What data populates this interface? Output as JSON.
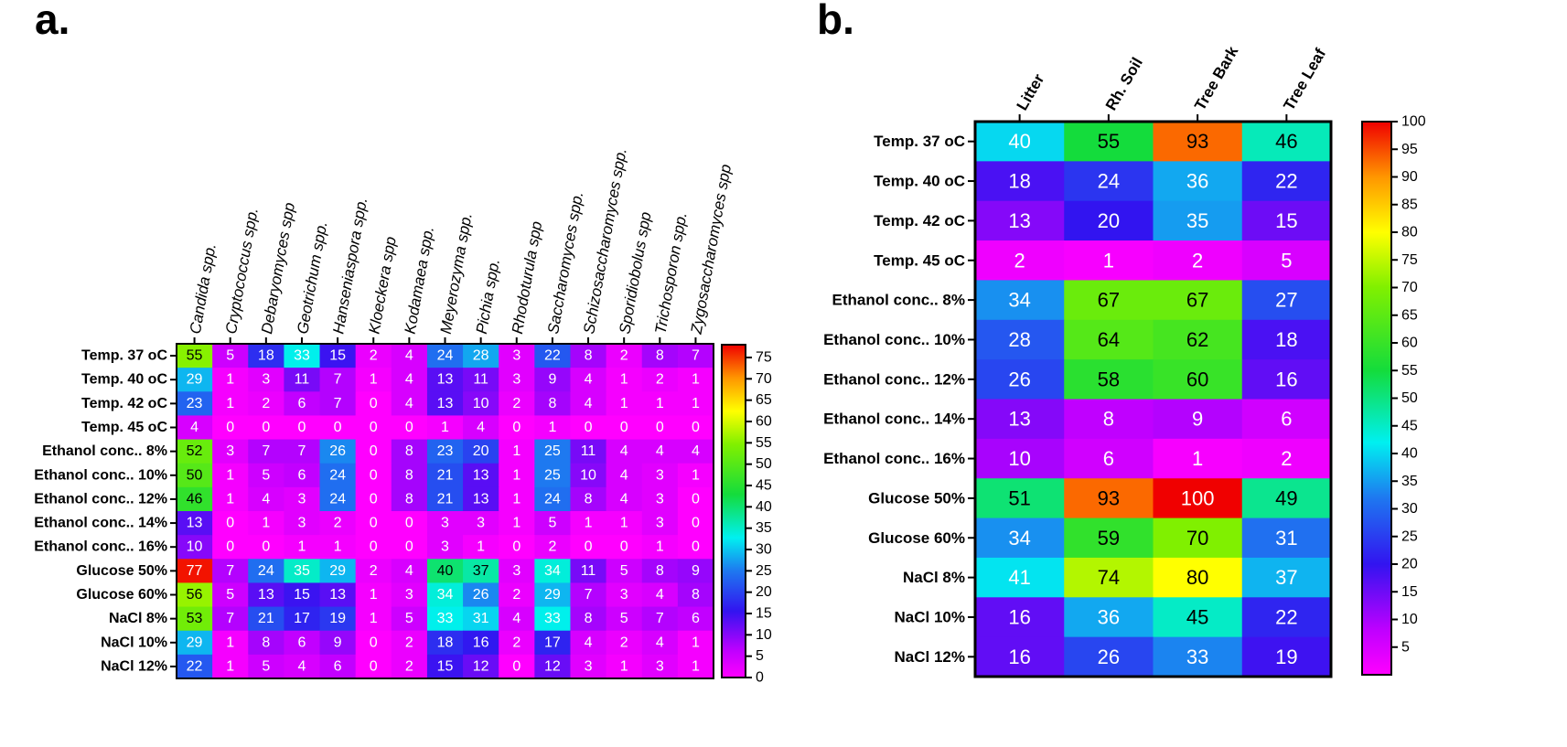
{
  "chart_data": [
    {
      "type": "heatmap",
      "panel_label": "a.",
      "title": "",
      "columns": [
        "Candida spp.",
        "Cryptococcus spp.",
        "Debaryomyces spp",
        "Geotrichum spp.",
        "Hanseniaspora spp.",
        "Kloeckera spp",
        "Kodamaea spp.",
        "Meyerozyma spp.",
        "Pichia spp.",
        "Rhodoturula spp",
        "Saccharomyces spp.",
        "Schizosaccharomyces spp.",
        "Sporidiobolus spp",
        "Trichosporon spp.",
        "Zygosaccharomyces spp"
      ],
      "rows": [
        "Temp. 37 oC",
        "Temp. 40 oC",
        "Temp. 42 oC",
        "Temp. 45 oC",
        "Ethanol conc.. 8%",
        "Ethanol conc.. 10%",
        "Ethanol conc.. 12%",
        "Ethanol conc.. 14%",
        "Ethanol conc.. 16%",
        "Glucose 50%",
        "Glucose 60%",
        "NaCl 8%",
        "NaCl 10%",
        "NaCl 12%"
      ],
      "values": [
        [
          55,
          5,
          18,
          33,
          15,
          2,
          4,
          24,
          28,
          3,
          22,
          8,
          2,
          8,
          7
        ],
        [
          29,
          1,
          3,
          11,
          7,
          1,
          4,
          13,
          11,
          3,
          9,
          4,
          1,
          2,
          1
        ],
        [
          23,
          1,
          2,
          6,
          7,
          0,
          4,
          13,
          10,
          2,
          8,
          4,
          1,
          1,
          1
        ],
        [
          4,
          0,
          0,
          0,
          0,
          0,
          0,
          1,
          4,
          0,
          1,
          0,
          0,
          0,
          0
        ],
        [
          52,
          3,
          7,
          7,
          26,
          0,
          8,
          23,
          20,
          1,
          25,
          11,
          4,
          4,
          4
        ],
        [
          50,
          1,
          5,
          6,
          24,
          0,
          8,
          21,
          13,
          1,
          25,
          10,
          4,
          3,
          1
        ],
        [
          46,
          1,
          4,
          3,
          24,
          0,
          8,
          21,
          13,
          1,
          24,
          8,
          4,
          3,
          0
        ],
        [
          13,
          0,
          1,
          3,
          2,
          0,
          0,
          3,
          3,
          1,
          5,
          1,
          1,
          3,
          0
        ],
        [
          10,
          0,
          0,
          1,
          1,
          0,
          0,
          3,
          1,
          0,
          2,
          0,
          0,
          1,
          0
        ],
        [
          77,
          7,
          24,
          35,
          29,
          2,
          4,
          40,
          37,
          3,
          34,
          11,
          5,
          8,
          9
        ],
        [
          56,
          5,
          13,
          15,
          13,
          1,
          3,
          34,
          26,
          2,
          29,
          7,
          3,
          4,
          8
        ],
        [
          53,
          7,
          21,
          17,
          19,
          1,
          5,
          33,
          31,
          4,
          33,
          8,
          5,
          7,
          6
        ],
        [
          29,
          1,
          8,
          6,
          9,
          0,
          2,
          18,
          16,
          2,
          17,
          4,
          2,
          4,
          1
        ],
        [
          22,
          1,
          5,
          4,
          6,
          0,
          2,
          15,
          12,
          0,
          12,
          3,
          1,
          3,
          1
        ]
      ],
      "colorbar": {
        "min": 0,
        "max": 78,
        "ticks": [
          0,
          5,
          10,
          15,
          20,
          25,
          30,
          35,
          40,
          45,
          50,
          55,
          60,
          65,
          70,
          75
        ]
      }
    },
    {
      "type": "heatmap",
      "panel_label": "b.",
      "title": "",
      "columns": [
        "Litter",
        "Rh. Soil",
        "Tree Bark",
        "Tree Leaf"
      ],
      "rows": [
        "Temp. 37 oC",
        "Temp. 40 oC",
        "Temp. 42 oC",
        "Temp. 45 oC",
        "Ethanol conc.. 8%",
        "Ethanol conc.. 10%",
        "Ethanol conc.. 12%",
        "Ethanol conc.. 14%",
        "Ethanol conc.. 16%",
        "Glucose 50%",
        "Glucose 60%",
        "NaCl 8%",
        "NaCl 10%",
        "NaCl 12%"
      ],
      "values": [
        [
          40,
          55,
          93,
          46
        ],
        [
          18,
          24,
          36,
          22
        ],
        [
          13,
          20,
          35,
          15
        ],
        [
          2,
          1,
          2,
          5
        ],
        [
          34,
          67,
          67,
          27
        ],
        [
          28,
          64,
          62,
          18
        ],
        [
          26,
          58,
          60,
          16
        ],
        [
          13,
          8,
          9,
          6
        ],
        [
          10,
          6,
          1,
          2
        ],
        [
          51,
          93,
          100,
          49
        ],
        [
          34,
          59,
          70,
          31
        ],
        [
          41,
          74,
          80,
          37
        ],
        [
          16,
          36,
          45,
          22
        ],
        [
          16,
          26,
          33,
          19
        ]
      ],
      "colorbar": {
        "min": 0,
        "max": 100,
        "ticks": [
          5,
          10,
          15,
          20,
          25,
          30,
          35,
          40,
          45,
          50,
          55,
          60,
          65,
          70,
          75,
          80,
          85,
          90,
          95,
          100
        ]
      }
    }
  ]
}
